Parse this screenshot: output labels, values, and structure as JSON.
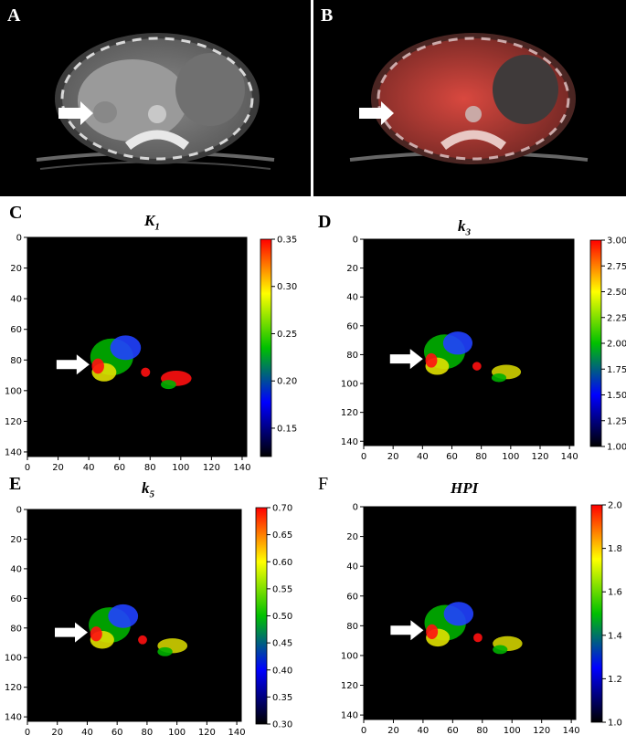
{
  "images": [
    {
      "label": "A",
      "style": "ct"
    },
    {
      "label": "B",
      "style": "petct"
    }
  ],
  "colors": {
    "accent_red": "#ff2020",
    "arrow": "#ffffff"
  },
  "chart_data": [
    {
      "type": "heatmap",
      "label": "C",
      "title_main": "K",
      "title_sub": "1",
      "xticks": [
        0,
        20,
        40,
        60,
        80,
        100,
        120,
        140
      ],
      "yticks": [
        0,
        20,
        40,
        60,
        80,
        100,
        120,
        140
      ],
      "xlim": [
        0,
        143
      ],
      "ylim": [
        143,
        0
      ],
      "clim": [
        0.12,
        0.35
      ],
      "cbar_ticks": [
        "0.35",
        "0.30",
        "0.25",
        "0.20",
        "0.15"
      ],
      "cbar_values": [
        0.35,
        0.3,
        0.25,
        0.2,
        0.15
      ],
      "colormap": [
        "#000000",
        "#0000ff",
        "#00c000",
        "#ffff00",
        "#ff0000"
      ]
    },
    {
      "type": "heatmap",
      "label": "D",
      "title_main": "k",
      "title_sub": "3",
      "xticks": [
        0,
        20,
        40,
        60,
        80,
        100,
        120,
        140
      ],
      "yticks": [
        0,
        20,
        40,
        60,
        80,
        100,
        120,
        140
      ],
      "xlim": [
        0,
        143
      ],
      "ylim": [
        143,
        0
      ],
      "clim": [
        1.0,
        3.0
      ],
      "cbar_ticks": [
        "3.00",
        "2.75",
        "2.50",
        "2.25",
        "2.00",
        "1.75",
        "1.50",
        "1.25",
        "1.00"
      ],
      "cbar_values": [
        3.0,
        2.75,
        2.5,
        2.25,
        2.0,
        1.75,
        1.5,
        1.25,
        1.0
      ],
      "colormap": [
        "#000000",
        "#0000ff",
        "#00c000",
        "#ffff00",
        "#ff0000"
      ]
    },
    {
      "type": "heatmap",
      "label": "E",
      "title_main": "k",
      "title_sub": "5",
      "xticks": [
        0,
        20,
        40,
        60,
        80,
        100,
        120,
        140
      ],
      "yticks": [
        0,
        20,
        40,
        60,
        80,
        100,
        120,
        140
      ],
      "xlim": [
        0,
        143
      ],
      "ylim": [
        143,
        0
      ],
      "clim": [
        0.3,
        0.7
      ],
      "cbar_ticks": [
        "0.70",
        "0.65",
        "0.60",
        "0.55",
        "0.50",
        "0.45",
        "0.40",
        "0.35",
        "0.30"
      ],
      "cbar_values": [
        0.7,
        0.65,
        0.6,
        0.55,
        0.5,
        0.45,
        0.4,
        0.35,
        0.3
      ],
      "colormap": [
        "#000000",
        "#0000ff",
        "#00c000",
        "#ffff00",
        "#ff0000"
      ]
    },
    {
      "type": "heatmap",
      "label": "F",
      "title_main": "HPI",
      "title_sub": "",
      "xticks": [
        0,
        20,
        40,
        60,
        80,
        100,
        120,
        140
      ],
      "yticks": [
        0,
        20,
        40,
        60,
        80,
        100,
        120,
        140
      ],
      "xlim": [
        0,
        143
      ],
      "ylim": [
        143,
        0
      ],
      "clim": [
        1.0,
        2.0
      ],
      "cbar_ticks": [
        "2.0",
        "1.8",
        "1.6",
        "1.4",
        "1.2",
        "1.0"
      ],
      "cbar_values": [
        2.0,
        1.8,
        1.6,
        1.4,
        1.2,
        1.0
      ],
      "colormap": [
        "#000000",
        "#0000ff",
        "#00c000",
        "#ffff00",
        "#ff0000"
      ]
    }
  ]
}
